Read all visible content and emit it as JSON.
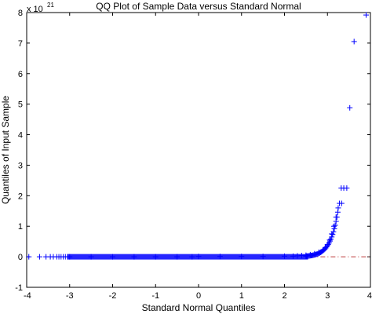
{
  "chart_data": {
    "type": "scatter",
    "title": "QQ Plot of Sample Data versus Standard Normal",
    "xlabel": "Standard Normal Quantiles",
    "ylabel": "Quantiles of Input Sample",
    "xlim": [
      -4,
      4
    ],
    "ylim": [
      -1,
      8
    ],
    "x_ticks": [
      -4,
      -3,
      -2,
      -1,
      0,
      1,
      2,
      3,
      4
    ],
    "y_ticks": [
      -1,
      0,
      1,
      2,
      3,
      4,
      5,
      6,
      7,
      8
    ],
    "x_tick_labels": [
      "-4",
      "-3",
      "-2",
      "-1",
      "0",
      "1",
      "2",
      "3",
      "4"
    ],
    "y_tick_labels": [
      "-1",
      "0",
      "1",
      "2",
      "3",
      "4",
      "5",
      "6",
      "7",
      "8"
    ],
    "y_multiplier": {
      "base": "x 10",
      "exponent": "21"
    },
    "marker": "+",
    "marker_color": "#0000ff",
    "reference_line_color": "#bf3f3f",
    "grid": false,
    "series": [
      {
        "points": [
          [
            -3.95,
            0.0
          ],
          [
            -3.7,
            0.0
          ],
          [
            -3.55,
            0.0
          ],
          [
            -3.45,
            0.0
          ],
          [
            -3.38,
            0.0
          ],
          [
            -3.3,
            0.0
          ],
          [
            -3.25,
            0.0
          ],
          [
            -3.2,
            0.0
          ],
          [
            -3.15,
            0.0
          ],
          [
            -3.1,
            0.0
          ],
          [
            -3.05,
            0.0
          ],
          [
            -3.0,
            0.0
          ],
          [
            -2.5,
            0.0
          ],
          [
            -2.0,
            0.0
          ],
          [
            -1.5,
            0.0
          ],
          [
            -1.0,
            0.0
          ],
          [
            -0.5,
            0.0
          ],
          [
            -0.15,
            0.0
          ],
          [
            0.0,
            0.01
          ],
          [
            0.5,
            0.01
          ],
          [
            1.0,
            0.01
          ],
          [
            1.5,
            0.01
          ],
          [
            2.0,
            0.02
          ],
          [
            2.2,
            0.02
          ],
          [
            2.3,
            0.03
          ],
          [
            2.4,
            0.04
          ],
          [
            2.5,
            0.05
          ],
          [
            2.6,
            0.07
          ],
          [
            2.7,
            0.1
          ],
          [
            2.8,
            0.15
          ],
          [
            2.9,
            0.23
          ],
          [
            2.95,
            0.3
          ],
          [
            3.0,
            0.4
          ],
          [
            3.05,
            0.55
          ],
          [
            3.1,
            0.75
          ],
          [
            3.15,
            1.0
          ],
          [
            3.2,
            1.3
          ],
          [
            3.25,
            1.6
          ],
          [
            3.28,
            1.75
          ],
          [
            3.33,
            1.75
          ],
          [
            3.32,
            2.25
          ],
          [
            3.38,
            2.25
          ],
          [
            3.45,
            2.25
          ],
          [
            3.52,
            4.88
          ],
          [
            3.62,
            7.05
          ],
          [
            3.9,
            7.92
          ]
        ]
      }
    ],
    "reference_line": {
      "x": [
        2.6,
        4.0
      ],
      "y": [
        0.0,
        0.0
      ]
    }
  }
}
